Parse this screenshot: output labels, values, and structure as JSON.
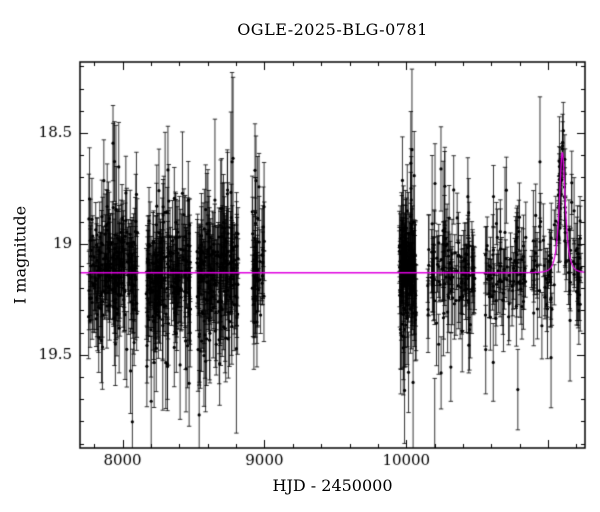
{
  "chart_data": {
    "type": "scatter",
    "title": "OGLE-2025-BLG-0781",
    "xlabel": "HJD - 2450000",
    "ylabel": "I magnitude",
    "xlim": [
      7700,
      11260
    ],
    "ylim_bottom": 19.92,
    "ylim_top": 18.18,
    "axis_inverted": true,
    "grid": false,
    "x_major_step": 1000,
    "x_minor_step": 200,
    "y_major_step": 0.5,
    "y_minor_step": 0.1,
    "x_ticks": [
      {
        "v": 8000,
        "label": "8000"
      },
      {
        "v": 9000,
        "label": "9000"
      },
      {
        "v": 10000,
        "label": "10000"
      },
      {
        "v": 11000,
        "label": ""
      }
    ],
    "y_ticks": [
      {
        "v": 18.5,
        "label": "18.5"
      },
      {
        "v": 19.0,
        "label": "19"
      },
      {
        "v": 19.5,
        "label": "19.5"
      }
    ],
    "point_color": "#000000",
    "axis_color": "#000000",
    "model_color": "#e000e0",
    "baseline_mag": 19.13,
    "model": {
      "t0": 11100,
      "tE": 30,
      "u0": 0.72,
      "peak_mag": 18.59
    },
    "seasons": [
      {
        "start": 7760,
        "end": 8105,
        "n": 210,
        "err": 0.13
      },
      {
        "start": 8165,
        "end": 8480,
        "n": 210,
        "err": 0.13
      },
      {
        "start": 8525,
        "end": 8815,
        "n": 190,
        "err": 0.14
      },
      {
        "start": 8905,
        "end": 9000,
        "n": 48,
        "err": 0.13
      },
      {
        "start": 9950,
        "end": 10070,
        "n": 130,
        "err": 0.13
      },
      {
        "start": 10150,
        "end": 10486,
        "n": 120,
        "err": 0.12
      },
      {
        "start": 10557,
        "end": 10843,
        "n": 85,
        "err": 0.11
      },
      {
        "start": 10880,
        "end": 11240,
        "n": 110,
        "err": 0.1
      }
    ],
    "seed": 42
  }
}
